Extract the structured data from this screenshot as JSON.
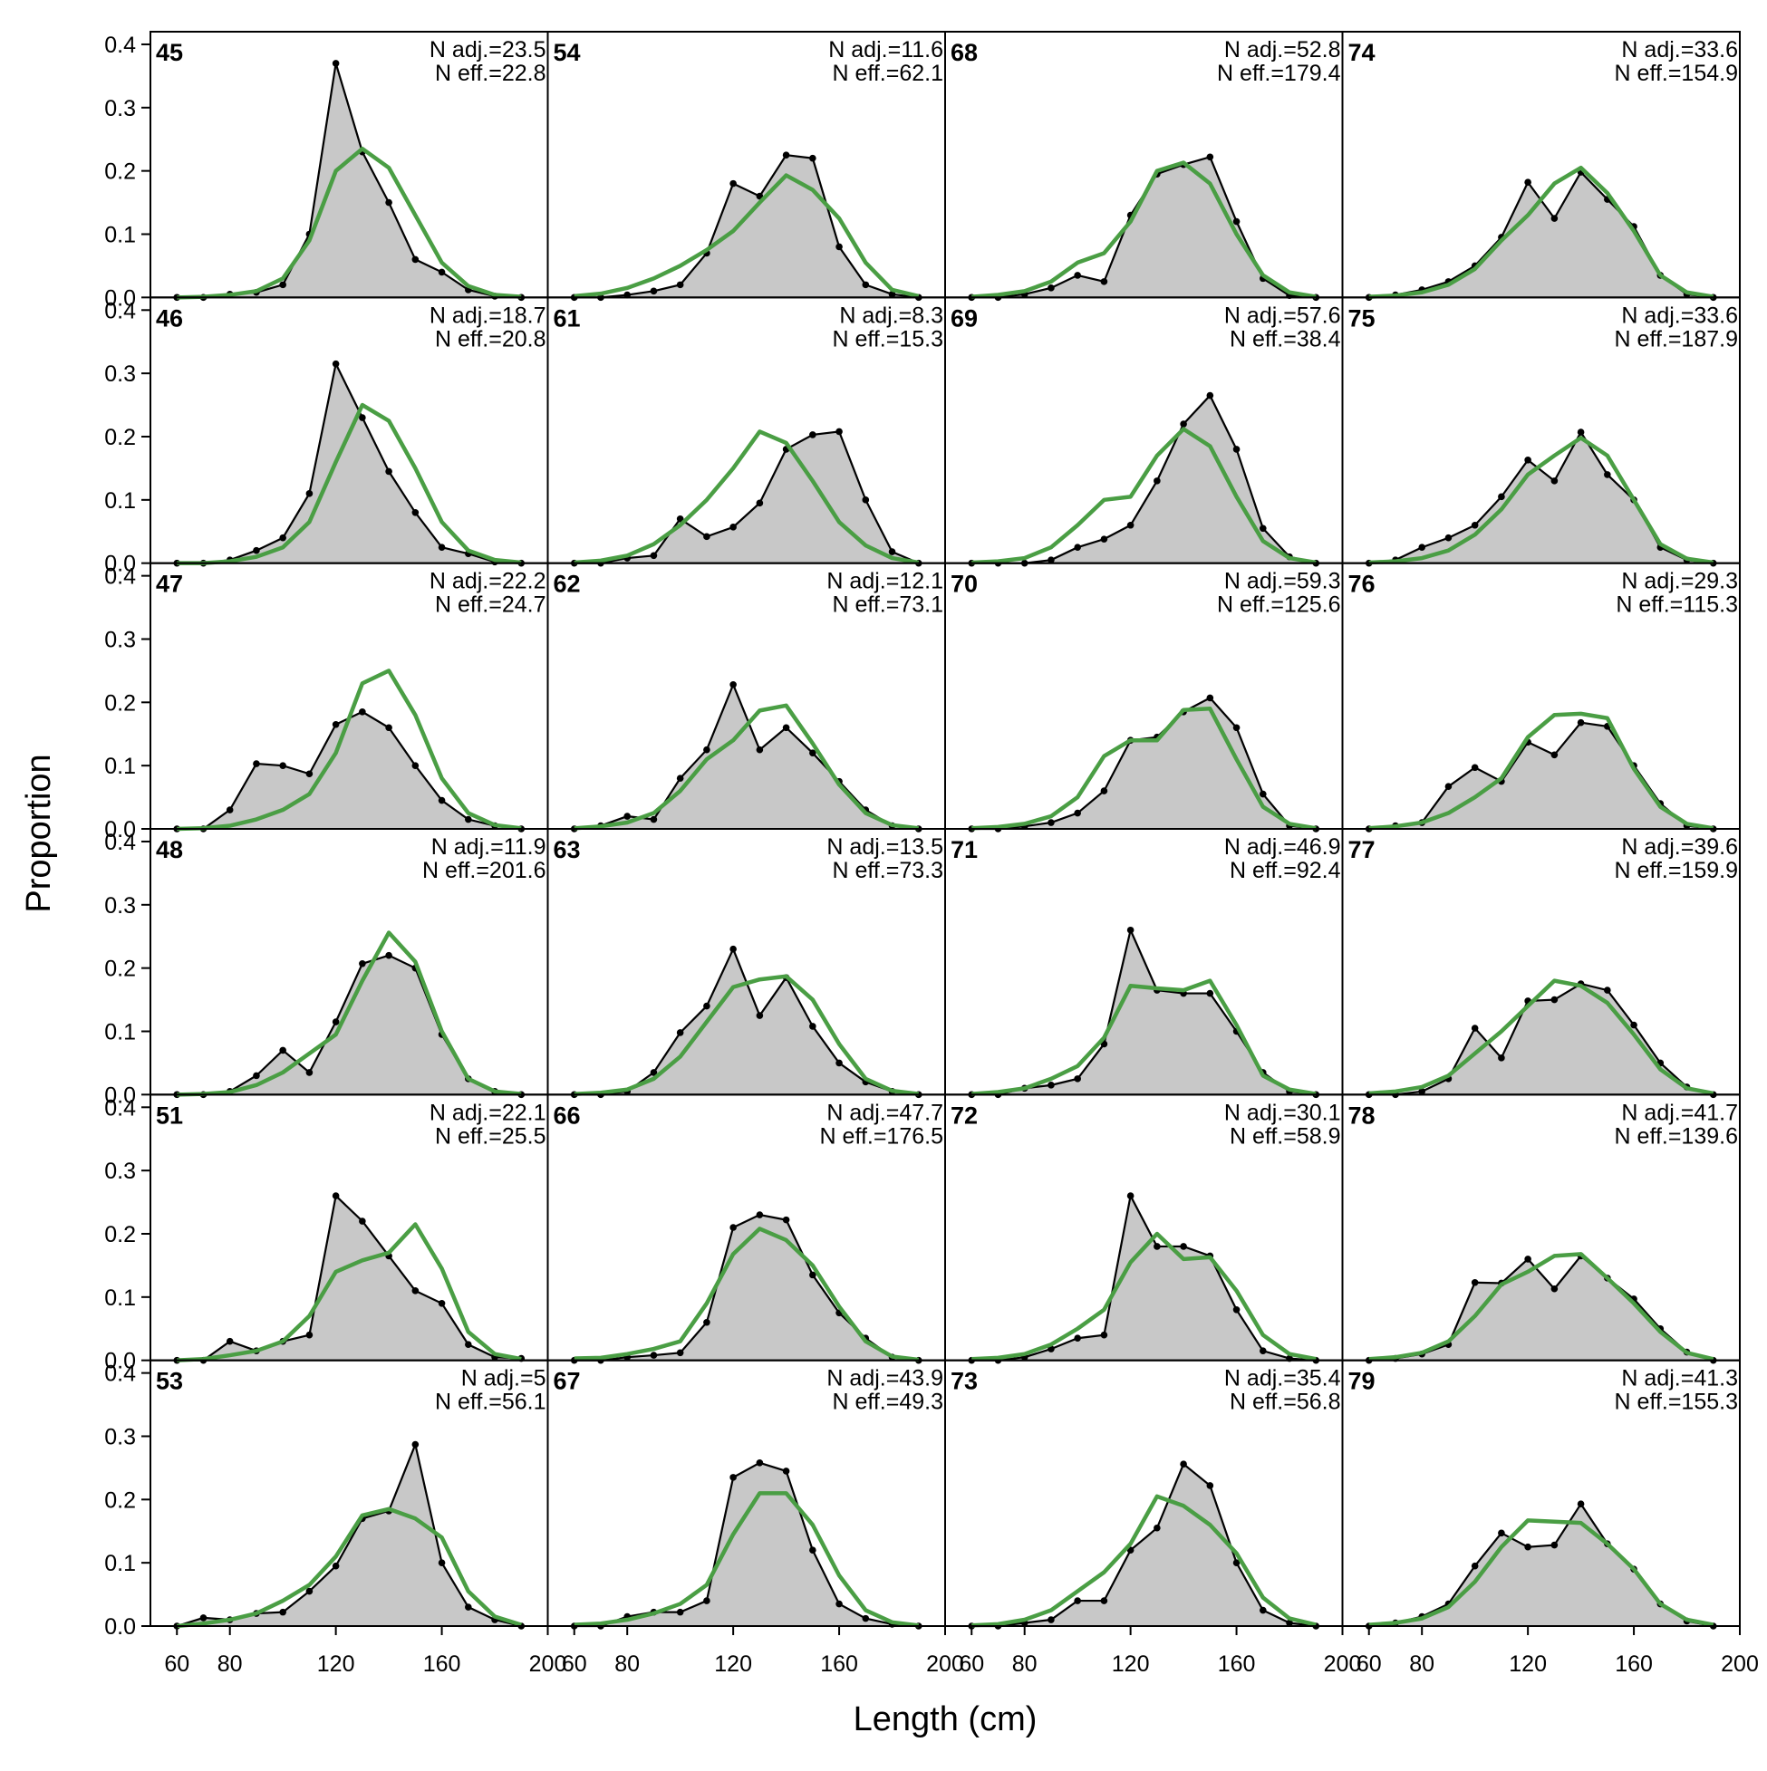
{
  "chart_data": {
    "type": "line",
    "xlabel": "Length (cm)",
    "ylabel": "Proportion",
    "xlim": [
      50,
      200
    ],
    "ylim": [
      0,
      0.42
    ],
    "x_ticks": [
      60,
      80,
      120,
      160,
      200
    ],
    "y_ticks": [
      "0.0",
      "0.1",
      "0.2",
      "0.3",
      "0.4"
    ],
    "y_tick_values": [
      0,
      0.1,
      0.2,
      0.3,
      0.4
    ],
    "x": [
      60,
      70,
      80,
      90,
      100,
      110,
      120,
      130,
      140,
      150,
      160,
      170,
      180,
      190
    ],
    "layout": {
      "rows": 6,
      "cols": 4,
      "order": "column-major"
    },
    "colors": {
      "observed_fill": "#c8c8c8",
      "observed_line": "#000000",
      "expected_line": "#4a9e44",
      "zero_line": "#b4b4b4"
    },
    "panels": [
      {
        "label": "45",
        "n_adj": "N adj.=23.5",
        "n_eff": "N eff.=22.8",
        "observed": [
          0.0,
          0.0,
          0.005,
          0.008,
          0.02,
          0.1,
          0.37,
          0.23,
          0.15,
          0.06,
          0.04,
          0.012,
          0.002,
          0.0
        ],
        "expected": [
          0.0,
          0.001,
          0.004,
          0.01,
          0.03,
          0.09,
          0.2,
          0.235,
          0.205,
          0.13,
          0.055,
          0.018,
          0.004,
          0.001
        ]
      },
      {
        "label": "46",
        "n_adj": "N adj.=18.7",
        "n_eff": "N eff.=20.8",
        "observed": [
          0.0,
          0.0,
          0.005,
          0.02,
          0.04,
          0.11,
          0.315,
          0.23,
          0.145,
          0.08,
          0.025,
          0.015,
          0.002,
          0.0
        ],
        "expected": [
          0.0,
          0.0,
          0.003,
          0.01,
          0.025,
          0.065,
          0.16,
          0.25,
          0.225,
          0.15,
          0.065,
          0.02,
          0.005,
          0.001
        ]
      },
      {
        "label": "47",
        "n_adj": "N adj.=22.2",
        "n_eff": "N eff.=24.7",
        "observed": [
          0.0,
          0.0,
          0.03,
          0.103,
          0.1,
          0.087,
          0.165,
          0.185,
          0.16,
          0.1,
          0.045,
          0.015,
          0.005,
          0.0
        ],
        "expected": [
          0.0,
          0.001,
          0.005,
          0.015,
          0.03,
          0.055,
          0.12,
          0.23,
          0.25,
          0.18,
          0.08,
          0.025,
          0.006,
          0.001
        ]
      },
      {
        "label": "48",
        "n_adj": "N adj.=11.9",
        "n_eff": "N eff.=201.6",
        "observed": [
          0.0,
          0.0,
          0.005,
          0.03,
          0.07,
          0.035,
          0.115,
          0.207,
          0.22,
          0.2,
          0.095,
          0.025,
          0.005,
          0.0
        ],
        "expected": [
          0.0,
          0.001,
          0.004,
          0.015,
          0.035,
          0.065,
          0.095,
          0.18,
          0.256,
          0.21,
          0.1,
          0.025,
          0.005,
          0.001
        ]
      },
      {
        "label": "51",
        "n_adj": "N adj.=22.1",
        "n_eff": "N eff.=25.5",
        "observed": [
          0.0,
          0.0,
          0.03,
          0.015,
          0.03,
          0.04,
          0.26,
          0.22,
          0.165,
          0.11,
          0.09,
          0.025,
          0.005,
          0.003
        ],
        "expected": [
          0.0,
          0.002,
          0.008,
          0.015,
          0.03,
          0.07,
          0.14,
          0.158,
          0.17,
          0.215,
          0.145,
          0.045,
          0.01,
          0.002
        ]
      },
      {
        "label": "53",
        "n_adj": "N adj.=5",
        "n_eff": "N eff.=56.1",
        "observed": [
          0.0,
          0.013,
          0.01,
          0.02,
          0.022,
          0.055,
          0.095,
          0.17,
          0.182,
          0.287,
          0.1,
          0.03,
          0.01,
          0.0
        ],
        "expected": [
          0.0,
          0.004,
          0.01,
          0.02,
          0.04,
          0.065,
          0.11,
          0.175,
          0.185,
          0.17,
          0.14,
          0.055,
          0.015,
          0.002
        ]
      },
      {
        "label": "54",
        "n_adj": "N adj.=11.6",
        "n_eff": "N eff.=62.1",
        "observed": [
          0.0,
          0.0,
          0.004,
          0.01,
          0.02,
          0.07,
          0.18,
          0.16,
          0.225,
          0.22,
          0.08,
          0.02,
          0.005,
          0.0
        ],
        "expected": [
          0.002,
          0.006,
          0.015,
          0.03,
          0.05,
          0.075,
          0.105,
          0.15,
          0.193,
          0.17,
          0.125,
          0.055,
          0.012,
          0.002
        ]
      },
      {
        "label": "61",
        "n_adj": "N adj.=8.3",
        "n_eff": "N eff.=15.3",
        "observed": [
          0.0,
          0.0,
          0.008,
          0.012,
          0.07,
          0.042,
          0.057,
          0.095,
          0.18,
          0.203,
          0.208,
          0.1,
          0.018,
          0.0
        ],
        "expected": [
          0.001,
          0.004,
          0.012,
          0.03,
          0.06,
          0.1,
          0.15,
          0.208,
          0.19,
          0.13,
          0.065,
          0.028,
          0.008,
          0.001
        ]
      },
      {
        "label": "62",
        "n_adj": "N adj.=12.1",
        "n_eff": "N eff.=73.1",
        "observed": [
          0.0,
          0.005,
          0.02,
          0.015,
          0.08,
          0.125,
          0.228,
          0.125,
          0.16,
          0.12,
          0.075,
          0.03,
          0.005,
          0.0
        ],
        "expected": [
          0.001,
          0.004,
          0.01,
          0.025,
          0.06,
          0.11,
          0.14,
          0.187,
          0.195,
          0.135,
          0.07,
          0.025,
          0.006,
          0.001
        ]
      },
      {
        "label": "63",
        "n_adj": "N adj.=13.5",
        "n_eff": "N eff.=73.3",
        "observed": [
          0.0,
          0.0,
          0.005,
          0.035,
          0.098,
          0.14,
          0.23,
          0.125,
          0.185,
          0.108,
          0.05,
          0.02,
          0.005,
          0.0
        ],
        "expected": [
          0.001,
          0.003,
          0.008,
          0.025,
          0.06,
          0.115,
          0.17,
          0.182,
          0.187,
          0.15,
          0.08,
          0.025,
          0.006,
          0.001
        ]
      },
      {
        "label": "66",
        "n_adj": "N adj.=47.7",
        "n_eff": "N eff.=176.5",
        "observed": [
          0.0,
          0.0,
          0.005,
          0.008,
          0.012,
          0.06,
          0.21,
          0.23,
          0.222,
          0.135,
          0.075,
          0.035,
          0.005,
          0.0
        ],
        "expected": [
          0.003,
          0.004,
          0.01,
          0.018,
          0.03,
          0.09,
          0.168,
          0.208,
          0.19,
          0.15,
          0.085,
          0.03,
          0.006,
          0.001
        ]
      },
      {
        "label": "67",
        "n_adj": "N adj.=43.9",
        "n_eff": "N eff.=49.3",
        "observed": [
          0.0,
          0.0,
          0.015,
          0.022,
          0.022,
          0.04,
          0.235,
          0.258,
          0.245,
          0.12,
          0.035,
          0.012,
          0.003,
          0.0
        ],
        "expected": [
          0.002,
          0.004,
          0.01,
          0.02,
          0.035,
          0.065,
          0.145,
          0.21,
          0.21,
          0.16,
          0.08,
          0.025,
          0.006,
          0.001
        ]
      },
      {
        "label": "68",
        "n_adj": "N adj.=52.8",
        "n_eff": "N eff.=179.4",
        "observed": [
          0.0,
          0.0,
          0.005,
          0.015,
          0.035,
          0.025,
          0.13,
          0.195,
          0.21,
          0.222,
          0.12,
          0.03,
          0.003,
          0.0
        ],
        "expected": [
          0.001,
          0.004,
          0.01,
          0.025,
          0.055,
          0.07,
          0.12,
          0.2,
          0.213,
          0.18,
          0.1,
          0.035,
          0.008,
          0.001
        ]
      },
      {
        "label": "69",
        "n_adj": "N adj.=57.6",
        "n_eff": "N eff.=38.4",
        "observed": [
          0.0,
          0.0,
          0.0,
          0.005,
          0.025,
          0.038,
          0.06,
          0.13,
          0.22,
          0.265,
          0.18,
          0.055,
          0.01,
          0.0
        ],
        "expected": [
          0.001,
          0.003,
          0.008,
          0.025,
          0.06,
          0.1,
          0.105,
          0.17,
          0.212,
          0.185,
          0.105,
          0.035,
          0.008,
          0.001
        ]
      },
      {
        "label": "70",
        "n_adj": "N adj.=59.3",
        "n_eff": "N eff.=125.6",
        "observed": [
          0.0,
          0.0,
          0.004,
          0.01,
          0.025,
          0.06,
          0.14,
          0.145,
          0.185,
          0.207,
          0.16,
          0.055,
          0.005,
          0.0
        ],
        "expected": [
          0.001,
          0.003,
          0.008,
          0.02,
          0.05,
          0.115,
          0.14,
          0.14,
          0.188,
          0.19,
          0.11,
          0.035,
          0.008,
          0.001
        ]
      },
      {
        "label": "71",
        "n_adj": "N adj.=46.9",
        "n_eff": "N eff.=92.4",
        "observed": [
          0.0,
          0.0,
          0.01,
          0.015,
          0.025,
          0.08,
          0.26,
          0.165,
          0.16,
          0.16,
          0.1,
          0.035,
          0.005,
          0.0
        ],
        "expected": [
          0.001,
          0.004,
          0.01,
          0.025,
          0.045,
          0.09,
          0.172,
          0.168,
          0.165,
          0.18,
          0.11,
          0.03,
          0.008,
          0.001
        ]
      },
      {
        "label": "72",
        "n_adj": "N adj.=30.1",
        "n_eff": "N eff.=58.9",
        "observed": [
          0.0,
          0.0,
          0.005,
          0.018,
          0.035,
          0.04,
          0.26,
          0.18,
          0.18,
          0.165,
          0.08,
          0.015,
          0.003,
          0.0
        ],
        "expected": [
          0.002,
          0.004,
          0.01,
          0.025,
          0.05,
          0.08,
          0.155,
          0.2,
          0.16,
          0.163,
          0.11,
          0.04,
          0.01,
          0.002
        ]
      },
      {
        "label": "73",
        "n_adj": "N adj.=35.4",
        "n_eff": "N eff.=56.8",
        "observed": [
          0.0,
          0.0,
          0.005,
          0.01,
          0.04,
          0.04,
          0.12,
          0.155,
          0.256,
          0.222,
          0.1,
          0.025,
          0.005,
          0.0
        ],
        "expected": [
          0.001,
          0.003,
          0.01,
          0.025,
          0.055,
          0.085,
          0.13,
          0.205,
          0.19,
          0.16,
          0.115,
          0.045,
          0.012,
          0.002
        ]
      },
      {
        "label": "74",
        "n_adj": "N adj.=33.6",
        "n_eff": "N eff.=154.9",
        "observed": [
          0.0,
          0.004,
          0.012,
          0.025,
          0.05,
          0.095,
          0.182,
          0.125,
          0.198,
          0.155,
          0.112,
          0.035,
          0.005,
          0.0
        ],
        "expected": [
          0.001,
          0.003,
          0.008,
          0.02,
          0.045,
          0.09,
          0.13,
          0.18,
          0.205,
          0.165,
          0.105,
          0.035,
          0.008,
          0.001
        ]
      },
      {
        "label": "75",
        "n_adj": "N adj.=33.6",
        "n_eff": "N eff.=187.9",
        "observed": [
          0.0,
          0.005,
          0.025,
          0.04,
          0.06,
          0.105,
          0.163,
          0.13,
          0.207,
          0.14,
          0.1,
          0.025,
          0.005,
          0.0
        ],
        "expected": [
          0.001,
          0.003,
          0.008,
          0.02,
          0.045,
          0.085,
          0.14,
          0.17,
          0.198,
          0.17,
          0.1,
          0.03,
          0.007,
          0.001
        ]
      },
      {
        "label": "76",
        "n_adj": "N adj.=29.3",
        "n_eff": "N eff.=115.3",
        "observed": [
          0.0,
          0.005,
          0.01,
          0.067,
          0.097,
          0.075,
          0.137,
          0.117,
          0.168,
          0.162,
          0.1,
          0.04,
          0.005,
          0.0
        ],
        "expected": [
          0.001,
          0.004,
          0.01,
          0.025,
          0.05,
          0.08,
          0.145,
          0.18,
          0.182,
          0.175,
          0.095,
          0.035,
          0.008,
          0.001
        ]
      },
      {
        "label": "77",
        "n_adj": "N adj.=39.6",
        "n_eff": "N eff.=159.9",
        "observed": [
          0.0,
          0.0,
          0.005,
          0.025,
          0.105,
          0.058,
          0.148,
          0.15,
          0.175,
          0.165,
          0.11,
          0.05,
          0.012,
          0.0
        ],
        "expected": [
          0.002,
          0.005,
          0.012,
          0.03,
          0.065,
          0.1,
          0.14,
          0.18,
          0.172,
          0.145,
          0.095,
          0.04,
          0.01,
          0.002
        ]
      },
      {
        "label": "78",
        "n_adj": "N adj.=41.7",
        "n_eff": "N eff.=139.6",
        "observed": [
          0.0,
          0.003,
          0.01,
          0.025,
          0.123,
          0.122,
          0.16,
          0.113,
          0.165,
          0.13,
          0.097,
          0.05,
          0.013,
          0.0
        ],
        "expected": [
          0.002,
          0.005,
          0.012,
          0.03,
          0.07,
          0.12,
          0.14,
          0.165,
          0.168,
          0.13,
          0.09,
          0.045,
          0.012,
          0.002
        ]
      },
      {
        "label": "79",
        "n_adj": "N adj.=41.3",
        "n_eff": "N eff.=155.3",
        "observed": [
          0.0,
          0.005,
          0.015,
          0.035,
          0.095,
          0.147,
          0.125,
          0.128,
          0.193,
          0.13,
          0.09,
          0.035,
          0.008,
          0.0
        ],
        "expected": [
          0.002,
          0.005,
          0.012,
          0.03,
          0.07,
          0.125,
          0.167,
          0.165,
          0.163,
          0.13,
          0.09,
          0.035,
          0.01,
          0.002
        ]
      }
    ]
  }
}
